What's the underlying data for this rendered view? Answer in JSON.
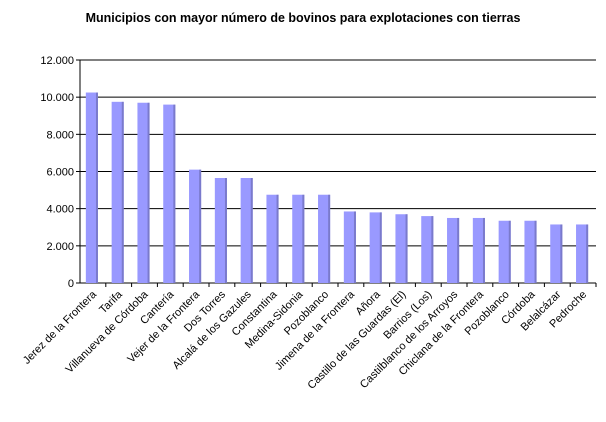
{
  "chart_data": {
    "type": "bar",
    "title": "Municipios con mayor número de bovinos para explotaciones con tierras",
    "categories": [
      "Jerez de la Frontera",
      "Tarifa",
      "Villanueva de Córdoba",
      "Cantería",
      "Vejer de la Frontera",
      "Dos Torres",
      "Alcalá de los Gazules",
      "Constantina",
      "Medina-Sidonia",
      "Pozoblanco",
      "Jimena de la Frontera",
      "Añora",
      "Castillo de las Guardas (El)",
      "Barrios (Los)",
      "Castilblanco de los Arroyos",
      "Chiclana de la Frontera",
      "Pozoblanco",
      "Córdoba",
      "Belalcázar",
      "Pedroche"
    ],
    "values": [
      10250,
      9750,
      9700,
      9600,
      6100,
      5650,
      5650,
      4750,
      4750,
      4750,
      3850,
      3800,
      3700,
      3600,
      3500,
      3500,
      3350,
      3350,
      3150,
      3150
    ],
    "y_ticks": [
      "0",
      "2.000",
      "4.000",
      "6.000",
      "8.000",
      "10.000",
      "12.000"
    ],
    "ylim": [
      0,
      12000
    ],
    "grid": true,
    "legend": "none",
    "colors": {
      "bar_fill": "#9999ff",
      "bar_shadow": "#6666aa",
      "axis": "#000000",
      "gridline": "#000000",
      "plot_background": "#ffffff"
    }
  }
}
